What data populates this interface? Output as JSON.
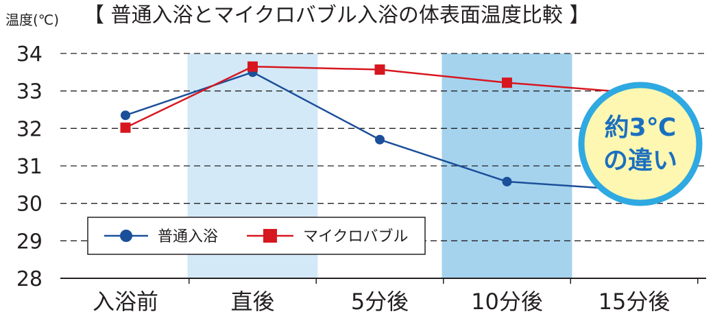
{
  "chart_data": {
    "type": "line",
    "title": "【 普通入浴とマイクロバブル入浴の体表面温度比較 】",
    "ylabel": "温度(℃)",
    "xlabel": "",
    "categories": [
      "入浴前",
      "直後",
      "5分後",
      "10分後",
      "15分後"
    ],
    "ylim": [
      28,
      34
    ],
    "yticks": [
      34,
      33,
      32,
      31,
      30,
      29,
      28
    ],
    "grid": true,
    "legend_position": "bottom-left",
    "series": [
      {
        "name": "普通入浴",
        "values": [
          32.35,
          33.5,
          31.7,
          30.58,
          30.35
        ],
        "color": "#1b4f9a",
        "marker": "circle"
      },
      {
        "name": "マイクロバブル",
        "values": [
          32.02,
          33.65,
          33.57,
          33.22,
          32.95
        ],
        "color": "#d7171f",
        "marker": "square"
      }
    ],
    "highlight_bands": [
      {
        "category": "直後",
        "color": "#d3e9f7"
      },
      {
        "category": "10分後",
        "color": "#a5d3ee"
      }
    ],
    "annotation": {
      "line1": "約3℃",
      "line2": "の違い",
      "fill": "#fdf7b1",
      "border": "#2fa9e1"
    }
  }
}
